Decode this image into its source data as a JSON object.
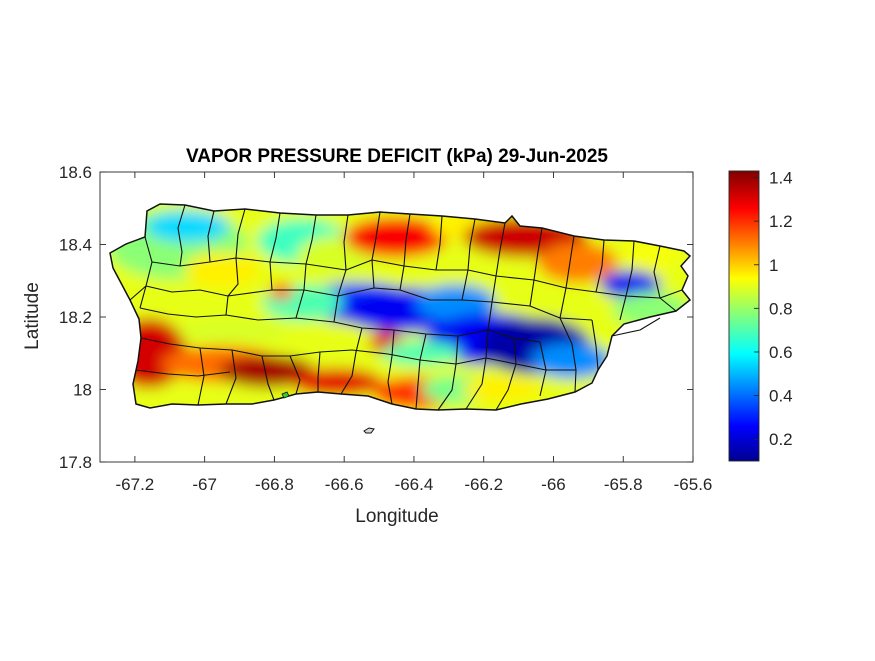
{
  "chart_data": {
    "type": "heatmap",
    "title": "VAPOR PRESSURE DEFICIT (kPa) 29-Jun-2025",
    "xlabel": "Longitude",
    "ylabel": "Latitude",
    "xlim": [
      -67.3,
      -65.6
    ],
    "ylim": [
      17.8,
      18.6
    ],
    "xticks": [
      -67.2,
      -67,
      -66.8,
      -66.6,
      -66.4,
      -66.2,
      -66,
      -65.8,
      -65.6
    ],
    "xtick_labels": [
      "-67.2",
      "-67",
      "-66.8",
      "-66.6",
      "-66.4",
      "-66.2",
      "-66",
      "-65.8",
      "-65.6"
    ],
    "yticks": [
      17.8,
      18,
      18.2,
      18.4,
      18.6
    ],
    "ytick_labels": [
      "17.8",
      "18",
      "18.2",
      "18.4",
      "18.6"
    ],
    "colorbar": {
      "colormap": "jet",
      "range": [
        0.1,
        1.43
      ],
      "ticks": [
        0.2,
        0.4,
        0.6,
        0.8,
        1,
        1.2,
        1.4
      ],
      "tick_labels": [
        "0.2",
        "0.4",
        "0.6",
        "0.8",
        "1",
        "1.2",
        "1.4"
      ]
    },
    "grid": false,
    "approximate_field_features": [
      {
        "lon": -67.15,
        "lat": 18.11,
        "vpd": 1.3
      },
      {
        "lon": -66.83,
        "lat": 18.05,
        "vpd": 1.38
      },
      {
        "lon": -66.55,
        "lat": 18.03,
        "vpd": 1.3
      },
      {
        "lon": -66.48,
        "lat": 18.12,
        "vpd": 1.3
      },
      {
        "lon": -66.45,
        "lat": 18.43,
        "vpd": 1.28
      },
      {
        "lon": -66.05,
        "lat": 18.42,
        "vpd": 1.35
      },
      {
        "lon": -66.45,
        "lat": 18.2,
        "vpd": 0.25
      },
      {
        "lon": -66.08,
        "lat": 18.12,
        "vpd": 0.15
      },
      {
        "lon": -65.8,
        "lat": 18.28,
        "vpd": 0.25
      },
      {
        "lon": -67.05,
        "lat": 18.42,
        "vpd": 0.55
      }
    ]
  },
  "colors": {
    "axis": "#262626",
    "border_lines": "#111111",
    "background": "#ffffff"
  }
}
